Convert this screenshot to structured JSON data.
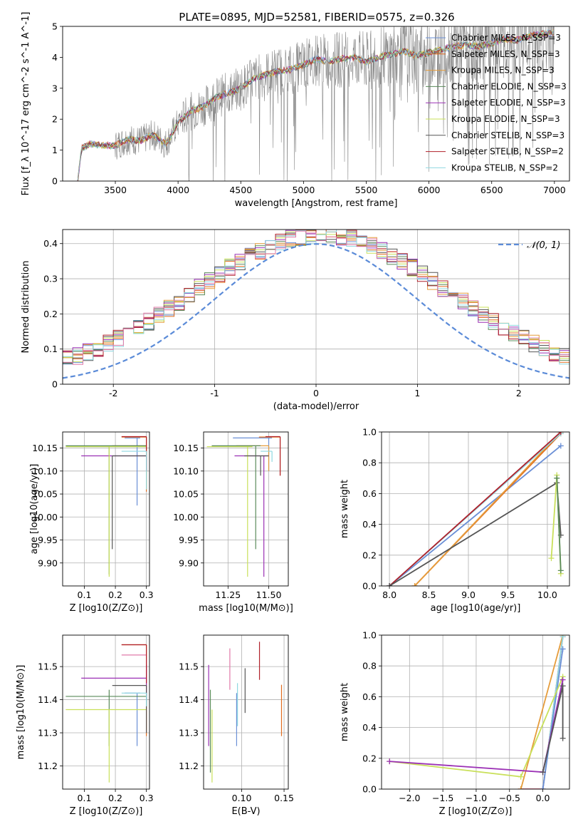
{
  "figure_title": "PLATE=0895, MJD=52581, FIBERID=0575, z=0.326",
  "palette": {
    "cm": "#6a8fd6",
    "sm": "#e06c1e",
    "km": "#e59c3b",
    "ce": "#5a8a5a",
    "se": "#9b30b5",
    "ke": "#c9e05a",
    "cs": "#555555",
    "ss": "#b0202a",
    "ks": "#8fd8e0",
    "pink": "#e07aa8",
    "gauss": "#5b8bd8",
    "data": "#888888"
  },
  "chart_data": [
    {
      "type": "line",
      "id": "spectrum",
      "title": "PLATE=0895, MJD=52581, FIBERID=0575, z=0.326",
      "xlabel": "wavelength [Angstrom, rest frame]",
      "ylabel": "Flux [f_λ 10^-17 erg cm^-2 s^-1 A^-1]",
      "xlim": [
        3080,
        7120
      ],
      "ylim": [
        0,
        5
      ],
      "xticks": [
        3500,
        4000,
        4500,
        5000,
        5500,
        6000,
        6500,
        7000
      ],
      "yticks": [
        0,
        1,
        2,
        3,
        4,
        5
      ],
      "legend": "upper-right",
      "continuum": {
        "x": [
          3200,
          3230,
          3300,
          3400,
          3500,
          3600,
          3700,
          3800,
          3900,
          3950,
          4000,
          4100,
          4200,
          4300,
          4400,
          4500,
          4600,
          4700,
          4800,
          4900,
          5000,
          5100,
          5200,
          5300,
          5400,
          5500,
          5600,
          5700,
          5800,
          5900,
          6000,
          6100,
          6200,
          6300,
          6400,
          6500,
          6600,
          6700,
          6800,
          6900,
          7000
        ],
        "y": [
          0.0,
          1.05,
          1.2,
          1.15,
          1.15,
          1.35,
          1.3,
          1.5,
          1.2,
          1.5,
          1.9,
          2.25,
          2.4,
          2.7,
          2.85,
          3.0,
          3.3,
          3.45,
          3.55,
          3.6,
          3.75,
          3.95,
          3.85,
          3.95,
          4.0,
          3.85,
          4.0,
          4.1,
          4.2,
          4.05,
          4.15,
          4.25,
          4.35,
          4.4,
          4.35,
          4.45,
          4.6,
          4.55,
          4.7,
          4.75,
          4.8
        ]
      },
      "series": [
        {
          "name": "Chabrier MILES, N_SSP=3",
          "key": "cm"
        },
        {
          "name": "Salpeter MILES, N_SSP=3",
          "key": "sm"
        },
        {
          "name": "Kroupa MILES, N_SSP=3",
          "key": "km"
        },
        {
          "name": "Chabrier ELODIE, N_SSP=3",
          "key": "ce"
        },
        {
          "name": "Salpeter ELODIE, N_SSP=3",
          "key": "se"
        },
        {
          "name": "Kroupa ELODIE, N_SSP=3",
          "key": "ke"
        },
        {
          "name": "Chabrier STELIB, N_SSP=3",
          "key": "cs"
        },
        {
          "name": "Salpeter STELIB, N_SSP=2",
          "key": "ss"
        },
        {
          "name": "Kroupa STELIB, N_SSP=2",
          "key": "ks"
        }
      ]
    },
    {
      "type": "area",
      "id": "residuals",
      "xlabel": "(data-model)/error",
      "ylabel": "Normed distribution",
      "xlim": [
        -2.5,
        2.5
      ],
      "ylim": [
        0,
        0.44
      ],
      "xticks": [
        -2,
        -1,
        0,
        1,
        2
      ],
      "yticks": [
        0.0,
        0.1,
        0.2,
        0.3,
        0.4
      ],
      "legend": "upper-right",
      "gaussian_label": "𝒩(0, 1)",
      "bin_width": 0.1,
      "series": [
        {
          "key": "cm"
        },
        {
          "key": "sm"
        },
        {
          "key": "km"
        },
        {
          "key": "ce"
        },
        {
          "key": "se"
        },
        {
          "key": "ke"
        },
        {
          "key": "cs"
        },
        {
          "key": "ss"
        },
        {
          "key": "ks"
        },
        {
          "key": "pink"
        }
      ]
    },
    {
      "type": "scatter",
      "id": "age-vs-Z",
      "xlabel": "Z [log10(Z/Z⊙)]",
      "ylabel": "age [log10(age/yr)]",
      "xlim": [
        0.03,
        0.31
      ],
      "ylim": [
        9.85,
        10.185
      ],
      "xticks": [
        "0.1",
        "0.2",
        "0.3"
      ],
      "yticks": [
        "9.90",
        "9.95",
        "10.00",
        "10.05",
        "10.10",
        "10.15"
      ],
      "points": [
        {
          "key": "cm",
          "x": 0.27,
          "xerr": [
            0.23,
            0.28
          ],
          "y": 10.172,
          "yerr": [
            10.025,
            10.172
          ]
        },
        {
          "key": "sm",
          "x": 0.3,
          "xerr": [
            0.22,
            0.3
          ],
          "y": 10.174,
          "yerr": [
            10.055,
            10.174
          ]
        },
        {
          "key": "km",
          "x": 0.3,
          "xerr": [
            0.19,
            0.3
          ],
          "y": 10.155,
          "yerr": [
            10.06,
            10.155
          ]
        },
        {
          "key": "ce",
          "x": 0.18,
          "xerr": [
            0.04,
            0.3
          ],
          "y": 10.155,
          "yerr": [
            9.875,
            10.155
          ]
        },
        {
          "key": "se",
          "x": 0.3,
          "xerr": [
            0.09,
            0.3
          ],
          "y": 10.133,
          "yerr": [
            10.1,
            10.133
          ]
        },
        {
          "key": "ke",
          "x": 0.18,
          "xerr": [
            0.04,
            0.3
          ],
          "y": 10.153,
          "yerr": [
            9.87,
            10.153
          ]
        },
        {
          "key": "cs",
          "x": 0.19,
          "xerr": [
            0.19,
            0.3
          ],
          "y": 10.133,
          "yerr": [
            9.93,
            10.133
          ]
        },
        {
          "key": "ss",
          "x": 0.3,
          "xerr": [
            0.22,
            0.3
          ],
          "y": 10.175,
          "yerr": [
            10.1,
            10.175
          ]
        },
        {
          "key": "ks",
          "x": 0.3,
          "xerr": [
            0.22,
            0.3
          ],
          "y": 10.143,
          "yerr": [
            10.06,
            10.143
          ]
        }
      ]
    },
    {
      "type": "scatter",
      "id": "age-vs-mass",
      "xlabel": "mass [log10(M/M⊙)]",
      "xlim": [
        11.1,
        11.62
      ],
      "ylim": [
        9.85,
        10.185
      ],
      "xticks": [
        "11.25",
        "11.50"
      ],
      "yticks": [
        "9.90",
        "9.95",
        "10.00",
        "10.05",
        "10.10",
        "10.15"
      ],
      "points": [
        {
          "key": "cm",
          "x": 11.5,
          "xerr": [
            11.28,
            11.52
          ],
          "y": 10.172,
          "yerr": [
            10.1,
            10.172
          ]
        },
        {
          "key": "sm",
          "x": 11.57,
          "xerr": [
            11.44,
            11.57
          ],
          "y": 10.174,
          "yerr": [
            10.09,
            10.174
          ]
        },
        {
          "key": "km",
          "x": 11.5,
          "xerr": [
            11.3,
            11.5
          ],
          "y": 10.155,
          "yerr": [
            10.1,
            10.155
          ]
        },
        {
          "key": "ce",
          "x": 11.42,
          "xerr": [
            11.15,
            11.45
          ],
          "y": 10.155,
          "yerr": [
            9.93,
            10.155
          ]
        },
        {
          "key": "se",
          "x": 11.47,
          "xerr": [
            11.29,
            11.5
          ],
          "y": 10.133,
          "yerr": [
            9.87,
            10.133
          ]
        },
        {
          "key": "ke",
          "x": 11.37,
          "xerr": [
            11.12,
            11.4
          ],
          "y": 10.153,
          "yerr": [
            9.87,
            10.153
          ]
        },
        {
          "key": "cs",
          "x": 11.45,
          "xerr": [
            11.35,
            11.5
          ],
          "y": 10.133,
          "yerr": [
            10.09,
            10.133
          ]
        },
        {
          "key": "ss",
          "x": 11.57,
          "xerr": [
            11.48,
            11.57
          ],
          "y": 10.175,
          "yerr": [
            10.09,
            10.175
          ]
        },
        {
          "key": "ks",
          "x": 11.52,
          "xerr": [
            11.45,
            11.52
          ],
          "y": 10.143,
          "yerr": [
            10.12,
            10.143
          ]
        }
      ]
    },
    {
      "type": "line",
      "id": "weight-vs-age",
      "xlabel": "age [log10(age/yr)]",
      "ylabel": "mass weight",
      "xlim": [
        7.9,
        10.28
      ],
      "ylim": [
        0,
        1
      ],
      "xticks": [
        "8.0",
        "8.5",
        "9.0",
        "9.5",
        "10.0"
      ],
      "yticks": [
        "0.0",
        "0.2",
        "0.4",
        "0.6",
        "0.8",
        "1.0"
      ],
      "series": [
        {
          "key": "cm",
          "x": [
            8.0,
            10.17
          ],
          "y": [
            0.0,
            0.91
          ]
        },
        {
          "key": "sm",
          "x": [
            8.32,
            10.17
          ],
          "y": [
            0.0,
            0.99
          ]
        },
        {
          "key": "km",
          "x": [
            8.32,
            10.17
          ],
          "y": [
            0.0,
            1.0
          ]
        },
        {
          "key": "ks",
          "x": [
            8.0,
            10.17
          ],
          "y": [
            0.0,
            0.99
          ]
        },
        {
          "key": "ss",
          "x": [
            8.0,
            10.17
          ],
          "y": [
            0.0,
            1.0
          ]
        },
        {
          "key": "cs",
          "x": [
            8.0,
            10.12,
            10.17
          ],
          "y": [
            0.0,
            0.67,
            0.33
          ]
        },
        {
          "key": "ke",
          "x": [
            10.05,
            10.12,
            10.17
          ],
          "y": [
            0.18,
            0.72,
            0.08
          ]
        },
        {
          "key": "ce",
          "x": [
            10.12,
            10.17
          ],
          "y": [
            0.7,
            0.1
          ]
        }
      ]
    },
    {
      "type": "scatter",
      "id": "mass-vs-Z",
      "xlabel": "Z [log10(Z/Z⊙)]",
      "ylabel": "mass [log10(M/M⊙)]",
      "xlim": [
        0.03,
        0.31
      ],
      "ylim": [
        11.13,
        11.595
      ],
      "xticks": [
        "0.1",
        "0.2",
        "0.3"
      ],
      "yticks": [
        "11.2",
        "11.3",
        "11.4",
        "11.5"
      ],
      "points": [
        {
          "key": "cm",
          "x": 0.27,
          "xerr": [
            0.23,
            0.28
          ],
          "y": 11.42,
          "yerr": [
            11.26,
            11.42
          ]
        },
        {
          "key": "sm",
          "x": 0.3,
          "xerr": [
            0.22,
            0.3
          ],
          "y": 11.566,
          "yerr": [
            11.29,
            11.566
          ]
        },
        {
          "key": "pink",
          "x": 0.3,
          "xerr": [
            0.22,
            0.3
          ],
          "y": 11.535,
          "yerr": [
            11.45,
            11.535
          ]
        },
        {
          "key": "ce",
          "x": 0.18,
          "xerr": [
            0.04,
            0.3
          ],
          "y": 11.41,
          "yerr": [
            11.26,
            11.43
          ]
        },
        {
          "key": "se",
          "x": 0.3,
          "xerr": [
            0.09,
            0.3
          ],
          "y": 11.465,
          "yerr": [
            11.4,
            11.505
          ]
        },
        {
          "key": "ke",
          "x": 0.18,
          "xerr": [
            0.04,
            0.3
          ],
          "y": 11.37,
          "yerr": [
            11.15,
            11.37
          ]
        },
        {
          "key": "cs",
          "x": 0.3,
          "xerr": [
            0.19,
            0.3
          ],
          "y": 11.443,
          "yerr": [
            11.3,
            11.443
          ]
        },
        {
          "key": "ss",
          "x": 0.3,
          "xerr": [
            0.22,
            0.3
          ],
          "y": 11.566,
          "yerr": [
            11.45,
            11.566
          ]
        },
        {
          "key": "ks",
          "x": 0.3,
          "xerr": [
            0.22,
            0.3
          ],
          "y": 11.42,
          "yerr": [
            11.38,
            11.42
          ]
        }
      ]
    },
    {
      "type": "scatter",
      "id": "mass-vs-EBV",
      "xlabel": "E(B-V)",
      "xlim": [
        0.055,
        0.155
      ],
      "ylim": [
        11.13,
        11.595
      ],
      "xticks": [
        "0.10",
        "0.15"
      ],
      "yticks": [
        "11.2",
        "11.3",
        "11.4",
        "11.5"
      ],
      "points": [
        {
          "key": "se",
          "x": 0.061,
          "yerr": [
            11.26,
            11.505
          ]
        },
        {
          "key": "ce",
          "x": 0.063,
          "yerr": [
            11.18,
            11.43
          ]
        },
        {
          "key": "ke",
          "x": 0.065,
          "yerr": [
            11.15,
            11.37
          ]
        },
        {
          "key": "pink",
          "x": 0.086,
          "yerr": [
            11.43,
            11.555
          ]
        },
        {
          "key": "cm",
          "x": 0.094,
          "yerr": [
            11.26,
            11.42
          ]
        },
        {
          "key": "ks",
          "x": 0.095,
          "yerr": [
            11.32,
            11.45
          ]
        },
        {
          "key": "cs",
          "x": 0.104,
          "yerr": [
            11.36,
            11.495
          ]
        },
        {
          "key": "ss",
          "x": 0.121,
          "yerr": [
            11.46,
            11.575
          ]
        },
        {
          "key": "sm",
          "x": 0.147,
          "yerr": [
            11.29,
            11.445
          ]
        }
      ]
    },
    {
      "type": "line",
      "id": "weight-vs-Z",
      "xlabel": "Z [log10(Z/Z⊙)]",
      "ylabel": "mass weight",
      "xlim": [
        -2.42,
        0.4
      ],
      "ylim": [
        0,
        1
      ],
      "xticks": [
        "−2.0",
        "−1.5",
        "−1.0",
        "−0.5",
        "0.0"
      ],
      "yticks": [
        "0.0",
        "0.2",
        "0.4",
        "0.6",
        "0.8",
        "1.0"
      ],
      "series": [
        {
          "key": "sm",
          "x": [
            -0.33,
            0.0,
            0.3
          ],
          "y": [
            0.0,
            0.0,
            0.99
          ]
        },
        {
          "key": "pink",
          "x": [
            -0.33,
            0.0,
            0.3
          ],
          "y": [
            0.0,
            0.0,
            0.99
          ]
        },
        {
          "key": "km",
          "x": [
            -0.33,
            0.3
          ],
          "y": [
            0.0,
            1.0
          ]
        },
        {
          "key": "ks",
          "x": [
            0.0,
            0.3
          ],
          "y": [
            0.0,
            0.99
          ]
        },
        {
          "key": "cm",
          "x": [
            0.0,
            0.3
          ],
          "y": [
            0.0,
            0.91
          ]
        },
        {
          "key": "ke",
          "x": [
            -2.3,
            -0.33,
            0.3
          ],
          "y": [
            0.18,
            0.08,
            0.73
          ]
        },
        {
          "key": "se",
          "x": [
            -2.3,
            0.0,
            0.3
          ],
          "y": [
            0.18,
            0.11,
            0.71
          ]
        },
        {
          "key": "cs",
          "x": [
            0.0,
            0.3,
            0.3
          ],
          "y": [
            0.11,
            0.67,
            0.33
          ]
        }
      ]
    }
  ]
}
